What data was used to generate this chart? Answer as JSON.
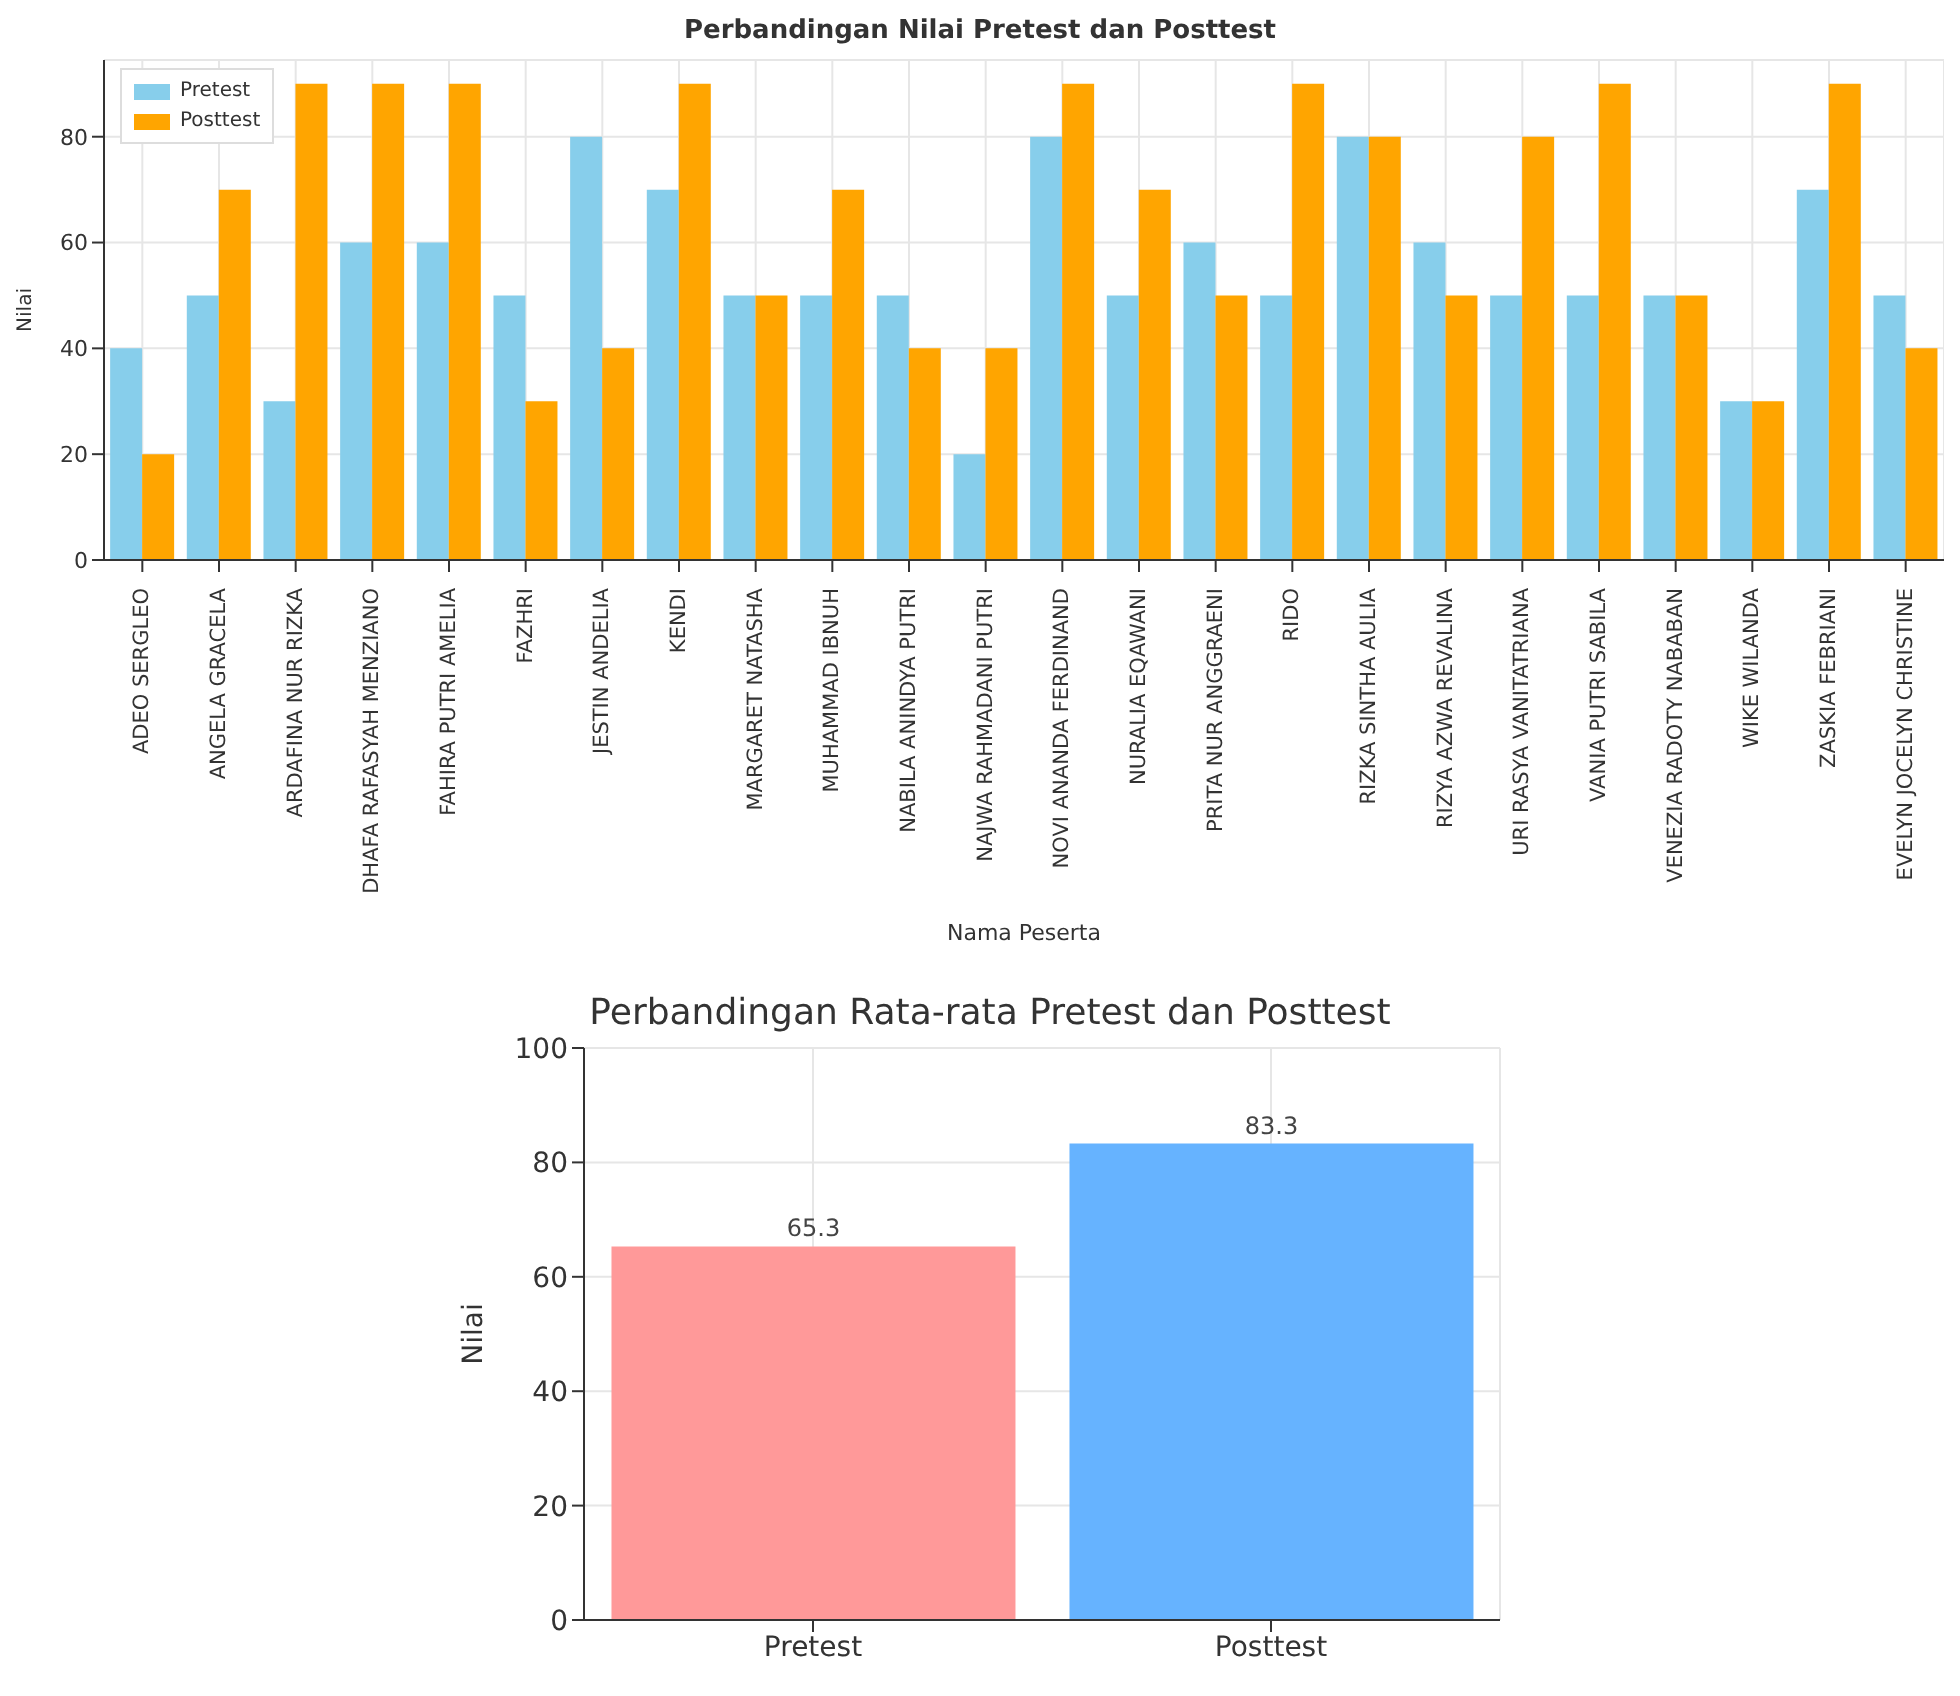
{
  "chart_data": [
    {
      "type": "bar",
      "title": "Perbandingan Nilai Pretest dan Posttest",
      "xlabel": "Nama Peserta",
      "ylabel": "Nilai",
      "categories": [
        "ADEO SERGLEO",
        "ANGELA GRACELA",
        "ARDAFINA NUR RIZKA",
        "DHAFA RAFASYAH MENZIANO",
        "FAHIRA PUTRI AMELIA",
        "FAZHRI",
        "JESTIN ANDELIA",
        "KENDI",
        "MARGARET NATASHA",
        "MUHAMMAD IBNUH",
        "NABILA ANINDYA PUTRI",
        "NAJWA RAHMADANI PUTRI",
        "NOVI ANANDA FERDINAND",
        "NURALIA EQAWANI",
        "PRITA NUR ANGGRAENI",
        "RIDO",
        "RIZKA SINTHA AULIA",
        "RIZYA AZWA REVALINA",
        "URI RASYA VANITATRIANA",
        "VANIA PUTRI SABILA",
        "VENEZIA RADOTY NABABAN",
        "WIKE WILANDA",
        "ZASKIA FEBRIANI",
        "EVELYN JOCELYN CHRISTINE"
      ],
      "series": [
        {
          "name": "Pretest",
          "color": "#87ceeb",
          "values": [
            40,
            50,
            30,
            60,
            60,
            50,
            80,
            70,
            50,
            50,
            50,
            20,
            80,
            50,
            60,
            50,
            80,
            60,
            50,
            50,
            50,
            30,
            70,
            50
          ]
        },
        {
          "name": "Posttest",
          "color": "#ffa500",
          "values": [
            20,
            70,
            90,
            90,
            90,
            30,
            40,
            90,
            50,
            70,
            40,
            40,
            90,
            70,
            50,
            90,
            80,
            50,
            80,
            90,
            50,
            30,
            90,
            40
          ]
        }
      ],
      "ylim": [
        0,
        94.5
      ],
      "yticks": [
        0,
        20,
        40,
        60,
        80
      ],
      "grid": true,
      "legend": "top left"
    },
    {
      "type": "bar",
      "title": "Perbandingan Rata-rata Pretest dan Posttest",
      "ylabel": "Nilai",
      "categories": [
        "Pretest",
        "Posttest"
      ],
      "values": [
        65.3,
        83.3
      ],
      "colors": [
        "#ff9999",
        "#66b3ff"
      ],
      "ylim": [
        0,
        100
      ],
      "yticks": [
        0,
        20,
        40,
        60,
        80,
        100
      ],
      "grid": true,
      "data_labels": true
    }
  ]
}
